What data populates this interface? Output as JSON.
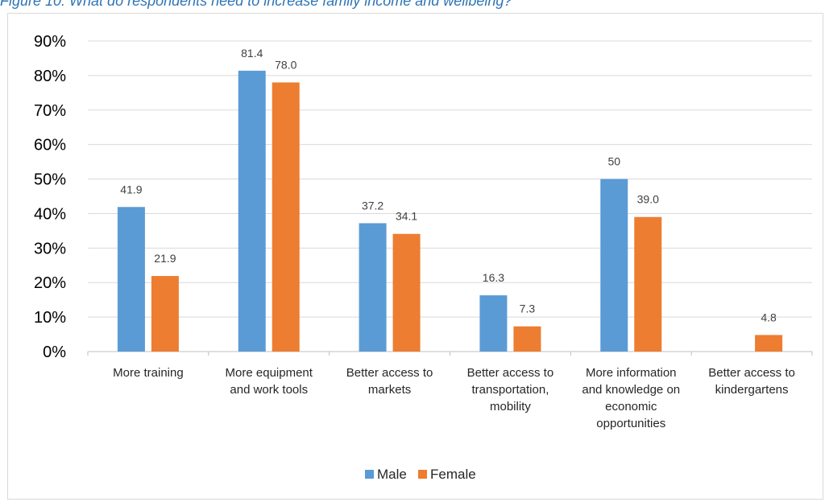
{
  "caption": "Figure 10: What do respondents need to increase family income and wellbeing?",
  "colors": {
    "male": "#5b9bd5",
    "female": "#ed7d31",
    "grid": "#d9d9d9",
    "axis": "#bfbfbf"
  },
  "chart_data": {
    "type": "bar",
    "title": "",
    "xlabel": "",
    "ylabel": "",
    "ylim": [
      0,
      90
    ],
    "y_ticks": [
      "0%",
      "10%",
      "20%",
      "30%",
      "40%",
      "50%",
      "60%",
      "70%",
      "80%",
      "90%"
    ],
    "grid": true,
    "legend": "bottom",
    "categories": [
      [
        "More training"
      ],
      [
        "More equipment",
        "and work tools"
      ],
      [
        "Better access to",
        "markets"
      ],
      [
        "Better access to",
        "transportation,",
        "mobility"
      ],
      [
        "More information",
        "and knowledge on",
        "economic",
        "opportunities"
      ],
      [
        "Better access to",
        "kindergartens"
      ]
    ],
    "series": [
      {
        "name": "Male",
        "values": [
          41.9,
          81.4,
          37.2,
          16.3,
          50,
          null
        ],
        "labels": [
          "41.9",
          "81.4",
          "37.2",
          "16.3",
          "50",
          ""
        ]
      },
      {
        "name": "Female",
        "values": [
          21.9,
          78.0,
          34.1,
          7.3,
          39.0,
          4.8
        ],
        "labels": [
          "21.9",
          "78.0",
          "34.1",
          "7.3",
          "39.0",
          "4.8"
        ]
      }
    ]
  }
}
